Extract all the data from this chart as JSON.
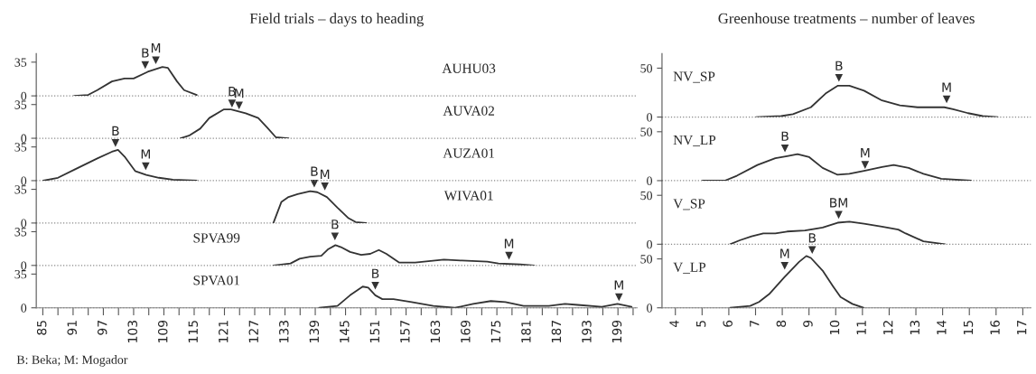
{
  "chart_data": [
    {
      "type": "line",
      "title": "Field trials – days to heading",
      "xlim": [
        83.7,
        202.8
      ],
      "ylim": [
        0,
        44
      ],
      "yticks": [
        0,
        35
      ],
      "tick_labels": "y",
      "ref_lines": [
        {
          "axis": "y",
          "value": 0,
          "line_style": "dotted",
          "color": "#888888"
        }
      ],
      "annotations": [
        "AUHU03"
      ],
      "series": [
        {
          "color": "#333333",
          "x": [
            91.2,
            94.0,
            95.8,
            98.7,
            101.2,
            103.0,
            105.8,
            108.7,
            109.8,
            111.6,
            113.0,
            115.5
          ],
          "values": [
            0,
            1,
            6,
            15,
            18,
            18,
            25,
            30,
            29,
            15,
            6,
            1
          ]
        },
        {
          "type": "scatter",
          "marker": "triangle",
          "color": "#333333",
          "x": [
            105.3,
            107.4
          ],
          "values": [
            32,
            37
          ],
          "value_labels": [
            "B",
            "M"
          ]
        }
      ]
    },
    {
      "type": "line",
      "xlim": [
        83.7,
        202.8
      ],
      "ylim": [
        0,
        44
      ],
      "yticks": [
        0,
        35
      ],
      "tick_labels": "y",
      "ref_lines": [
        {
          "axis": "y",
          "value": 0,
          "line_style": "dotted",
          "color": "#888888"
        }
      ],
      "annotations": [
        "AUVA02"
      ],
      "series": [
        {
          "color": "#333333",
          "x": [
            112.3,
            114.1,
            116.2,
            118.0,
            120.9,
            122.3,
            125.2,
            127.7,
            129.5,
            131.2,
            133.7
          ],
          "values": [
            0,
            3,
            10,
            21,
            30,
            30,
            26,
            21,
            11,
            1,
            0
          ]
        },
        {
          "type": "scatter",
          "marker": "triangle",
          "color": "#333333",
          "x": [
            122.5,
            123.9
          ],
          "values": [
            36,
            34
          ],
          "value_labels": [
            "B",
            "M"
          ]
        }
      ]
    },
    {
      "type": "line",
      "xlim": [
        83.7,
        202.8
      ],
      "ylim": [
        0,
        44
      ],
      "yticks": [
        0,
        35
      ],
      "tick_labels": "y",
      "ref_lines": [
        {
          "axis": "y",
          "value": 0,
          "line_style": "dotted",
          "color": "#888888"
        }
      ],
      "annotations": [
        "AUZA01"
      ],
      "series": [
        {
          "color": "#333333",
          "x": [
            85.1,
            88.0,
            91.5,
            95.8,
            98.7,
            99.9,
            101.2,
            103.3,
            105.5,
            108.0,
            110.8,
            115.5
          ],
          "values": [
            0,
            3,
            12,
            23,
            30,
            32,
            25,
            10,
            6,
            3,
            1,
            0
          ]
        },
        {
          "type": "scatter",
          "marker": "triangle",
          "color": "#333333",
          "x": [
            99.4,
            105.4
          ],
          "values": [
            39,
            15
          ],
          "value_labels": [
            "B",
            "M"
          ]
        }
      ]
    },
    {
      "type": "line",
      "xlim": [
        83.7,
        202.8
      ],
      "ylim": [
        0,
        44
      ],
      "yticks": [
        0,
        35
      ],
      "tick_labels": "y",
      "ref_lines": [
        {
          "axis": "y",
          "value": 0,
          "line_style": "dotted",
          "color": "#888888"
        }
      ],
      "annotations": [
        "WIVA01"
      ],
      "series": [
        {
          "color": "#333333",
          "x": [
            130.7,
            132.3,
            133.7,
            135.5,
            138.0,
            139.4,
            141.3,
            143.4,
            145.6,
            147.0,
            149.1
          ],
          "values": [
            0,
            22,
            27,
            30,
            33,
            32,
            27,
            16,
            5,
            1,
            0
          ]
        },
        {
          "type": "scatter",
          "marker": "triangle",
          "color": "#333333",
          "x": [
            138.8,
            140.9
          ],
          "values": [
            41,
            38
          ],
          "value_labels": [
            "B",
            "M"
          ]
        }
      ]
    },
    {
      "type": "line",
      "xlim": [
        83.7,
        202.8
      ],
      "ylim": [
        0,
        44
      ],
      "yticks": [
        0,
        35
      ],
      "tick_labels": "y",
      "ref_lines": [
        {
          "axis": "y",
          "value": 0,
          "line_style": "dotted",
          "color": "#888888"
        }
      ],
      "annotations": [
        "SPVA99"
      ],
      "series": [
        {
          "color": "#333333",
          "x": [
            130.7,
            134.1,
            135.9,
            138.0,
            140.2,
            141.6,
            143.0,
            144.1,
            145.9,
            148.1,
            149.9,
            151.6,
            153.1,
            155.6,
            158.8,
            164.5,
            168.1,
            173.1,
            175.3,
            179.6,
            182.4
          ],
          "values": [
            0,
            2,
            7,
            9,
            10,
            17,
            21,
            19,
            14,
            11,
            12,
            16,
            12,
            3,
            3,
            6,
            5,
            4,
            2,
            1,
            0
          ]
        },
        {
          "type": "scatter",
          "marker": "triangle",
          "color": "#333333",
          "x": [
            142.9,
            177.4
          ],
          "values": [
            30,
            10
          ],
          "value_labels": [
            "B",
            "M"
          ]
        }
      ]
    },
    {
      "type": "line",
      "xlim": [
        83.7,
        202.8
      ],
      "ylim": [
        0,
        44
      ],
      "yticks": [
        0,
        35
      ],
      "xticks": [
        85,
        {
          "value": 88,
          "label": null
        },
        91,
        {
          "value": 94,
          "label": null
        },
        97,
        {
          "value": 100,
          "label": null
        },
        103,
        {
          "value": 106,
          "label": null
        },
        109,
        {
          "value": 112,
          "label": null
        },
        115,
        {
          "value": 118,
          "label": null
        },
        121,
        {
          "value": 124,
          "label": null
        },
        127,
        {
          "value": 130,
          "label": null
        },
        133,
        {
          "value": 136,
          "label": null
        },
        139,
        {
          "value": 142,
          "label": null
        },
        145,
        {
          "value": 148,
          "label": null
        },
        151,
        {
          "value": 154,
          "label": null
        },
        157,
        {
          "value": 160,
          "label": null
        },
        163,
        {
          "value": 166,
          "label": null
        },
        169,
        {
          "value": 172,
          "label": null
        },
        175,
        {
          "value": 178,
          "label": null
        },
        181,
        {
          "value": 184,
          "label": null
        },
        187,
        {
          "value": 190,
          "label": null
        },
        193,
        {
          "value": 196,
          "label": null
        },
        199,
        {
          "value": 202,
          "label": null
        }
      ],
      "ref_lines": [
        {
          "axis": "y",
          "value": 0,
          "line_style": "dotted",
          "color": "#888888"
        }
      ],
      "annotations": [
        "SPVA01",
        "B: Beka; M: Mogador"
      ],
      "series": [
        {
          "color": "#333333",
          "x": [
            139.8,
            143.4,
            145.9,
            148.4,
            149.5,
            150.9,
            152.3,
            154.5,
            158.1,
            162.4,
            166.7,
            170.3,
            173.8,
            176.7,
            180.3,
            185.3,
            188.5,
            191.0,
            195.8,
            198.9,
            201.7
          ],
          "values": [
            0,
            2,
            13,
            22,
            21,
            13,
            9,
            9,
            6,
            2,
            0,
            4,
            7,
            6,
            2,
            2,
            4,
            3,
            1,
            4,
            1
          ]
        },
        {
          "type": "scatter",
          "marker": "triangle",
          "color": "#333333",
          "x": [
            150.9,
            199.2
          ],
          "values": [
            23,
            11
          ],
          "value_labels": [
            "B",
            "M"
          ]
        }
      ]
    },
    {
      "type": "line",
      "title": "Greenhouse treatments – number of leaves",
      "xlim": [
        3.5,
        17.3
      ],
      "ylim": [
        0,
        65
      ],
      "yticks": [
        0,
        50
      ],
      "tick_labels": "y",
      "ref_lines": [
        {
          "axis": "y",
          "value": 0,
          "line_style": "dotted",
          "color": "#888888"
        }
      ],
      "annotations": [
        "NV_SP"
      ],
      "series": [
        {
          "color": "#333333",
          "x": [
            7.02,
            7.96,
            8.4,
            9.07,
            9.62,
            10.07,
            10.51,
            11.06,
            11.73,
            12.4,
            13.06,
            14.06,
            14.39,
            14.95,
            15.5,
            16.06
          ],
          "values": [
            0,
            1,
            3,
            10,
            24,
            32,
            32,
            27,
            17,
            12,
            10,
            10,
            8,
            4,
            1,
            0
          ]
        },
        {
          "type": "scatter",
          "marker": "triangle",
          "color": "#333333",
          "x": [
            10.12,
            14.15
          ],
          "values": [
            40,
            18
          ],
          "value_labels": [
            "B",
            "M"
          ]
        }
      ]
    },
    {
      "type": "line",
      "xlim": [
        3.5,
        17.3
      ],
      "ylim": [
        0,
        65
      ],
      "yticks": [
        0,
        50
      ],
      "tick_labels": "y",
      "ref_lines": [
        {
          "axis": "y",
          "value": 0,
          "line_style": "dotted",
          "color": "#888888"
        }
      ],
      "annotations": [
        "NV_LP"
      ],
      "series": [
        {
          "color": "#333333",
          "x": [
            5.02,
            5.85,
            6.3,
            7.07,
            7.74,
            8.18,
            8.57,
            9.01,
            9.51,
            10.07,
            10.51,
            11.06,
            11.73,
            12.17,
            12.73,
            13.28,
            13.95,
            15.06
          ],
          "values": [
            0,
            0,
            5,
            16,
            23,
            25,
            27,
            24,
            13,
            6,
            7,
            10,
            14,
            16,
            13,
            7,
            2,
            0
          ]
        },
        {
          "type": "scatter",
          "marker": "triangle",
          "color": "#333333",
          "x": [
            8.1,
            11.1
          ],
          "values": [
            33,
            16
          ],
          "value_labels": [
            "B",
            "M"
          ]
        }
      ]
    },
    {
      "type": "line",
      "xlim": [
        3.5,
        17.3
      ],
      "ylim": [
        0,
        65
      ],
      "yticks": [
        0,
        50
      ],
      "tick_labels": "y",
      "ref_lines": [
        {
          "axis": "y",
          "value": 0,
          "line_style": "dotted",
          "color": "#888888"
        }
      ],
      "annotations": [
        "V_SP"
      ],
      "series": [
        {
          "color": "#333333",
          "x": [
            6.05,
            6.41,
            6.85,
            7.29,
            7.74,
            8.18,
            8.85,
            9.51,
            10.07,
            10.51,
            11.06,
            11.73,
            12.34,
            12.62,
            13.28,
            14.09
          ],
          "values": [
            0,
            4,
            8,
            11,
            11,
            13,
            14,
            17,
            22,
            23,
            21,
            18,
            15,
            11,
            3,
            0
          ]
        },
        {
          "type": "scatter",
          "marker": "triangle",
          "color": "#333333",
          "x": [
            10.11
          ],
          "values": [
            30
          ],
          "value_labels": [
            "BM"
          ]
        }
      ]
    },
    {
      "type": "line",
      "xlim": [
        3.5,
        17.3
      ],
      "ylim": [
        0,
        65
      ],
      "yticks": [
        0,
        50
      ],
      "xticks": [
        4,
        5,
        6,
        7,
        8,
        9,
        10,
        11,
        12,
        13,
        14,
        15,
        16,
        17
      ],
      "ref_lines": [
        {
          "axis": "y",
          "value": 0,
          "line_style": "dotted",
          "color": "#888888"
        }
      ],
      "annotations": [
        "V_LP"
      ],
      "series": [
        {
          "color": "#333333",
          "x": [
            6.05,
            6.8,
            7.13,
            7.51,
            8.07,
            8.63,
            8.9,
            9.07,
            9.51,
            9.9,
            10.18,
            10.62,
            11.04
          ],
          "values": [
            0,
            2,
            6,
            14,
            31,
            47,
            53,
            51,
            38,
            22,
            11,
            4,
            0
          ]
        },
        {
          "type": "scatter",
          "marker": "triangle",
          "color": "#333333",
          "x": [
            8.09,
            9.12
          ],
          "values": [
            43,
            59
          ],
          "value_labels": [
            "M",
            "B"
          ]
        }
      ]
    }
  ]
}
